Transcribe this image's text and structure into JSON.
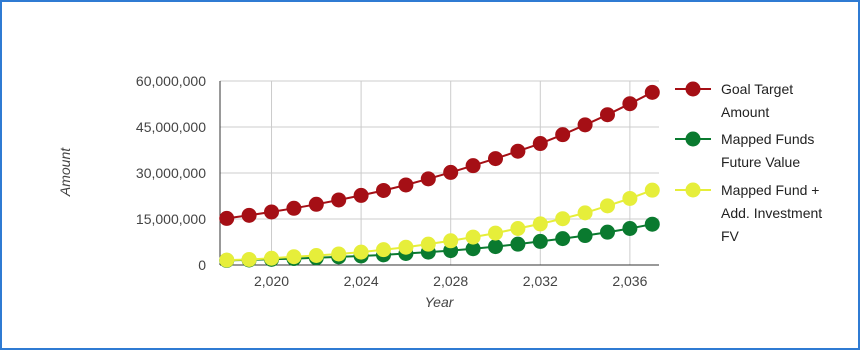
{
  "chart_data": {
    "type": "line",
    "title": "",
    "xlabel": "Year",
    "ylabel": "Amount",
    "x": [
      2018,
      2019,
      2020,
      2021,
      2022,
      2023,
      2024,
      2025,
      2026,
      2027,
      2028,
      2029,
      2030,
      2031,
      2032,
      2033,
      2034,
      2035,
      2036,
      2037
    ],
    "xlim": [
      2017.7,
      2037.3
    ],
    "ylim": [
      0,
      60000000
    ],
    "xticks": [
      "2,020",
      "2,024",
      "2,028",
      "2,032",
      "2,036"
    ],
    "xtick_values": [
      2020,
      2024,
      2028,
      2032,
      2036
    ],
    "yticks": [
      "0",
      "15,000,000",
      "30,000,000",
      "45,000,000",
      "60,000,000"
    ],
    "ytick_values": [
      0,
      15000000,
      30000000,
      45000000,
      60000000
    ],
    "grid": true,
    "legend_position": "right",
    "series": [
      {
        "name": "Goal Target Amount",
        "legend_lines": [
          "Goal Target",
          "Amount"
        ],
        "color": "#a50f15",
        "values": [
          15200000,
          16200000,
          17300000,
          18500000,
          19800000,
          21200000,
          22700000,
          24300000,
          26100000,
          28100000,
          30200000,
          32400000,
          34700000,
          37100000,
          39600000,
          42500000,
          45700000,
          49000000,
          52600000,
          56300000
        ]
      },
      {
        "name": "Mapped Funds Future Value",
        "legend_lines": [
          "Mapped Funds",
          "Future Value"
        ],
        "color": "#0a7a2f",
        "values": [
          1500000,
          1650000,
          1850000,
          2100000,
          2350000,
          2650000,
          2950000,
          3300000,
          3750000,
          4200000,
          4700000,
          5300000,
          6000000,
          6800000,
          7700000,
          8600000,
          9600000,
          10700000,
          11900000,
          13300000
        ]
      },
      {
        "name": "Mapped Fund + Add. Investment FV",
        "legend_lines": [
          "Mapped Fund +",
          "Add. Investment",
          "FV"
        ],
        "color": "#e6ee3a",
        "values": [
          1600000,
          1800000,
          2200000,
          2700000,
          3100000,
          3600000,
          4200000,
          5000000,
          5800000,
          6800000,
          7900000,
          9100000,
          10400000,
          11900000,
          13400000,
          15100000,
          17000000,
          19300000,
          21700000,
          24400000
        ]
      }
    ]
  }
}
